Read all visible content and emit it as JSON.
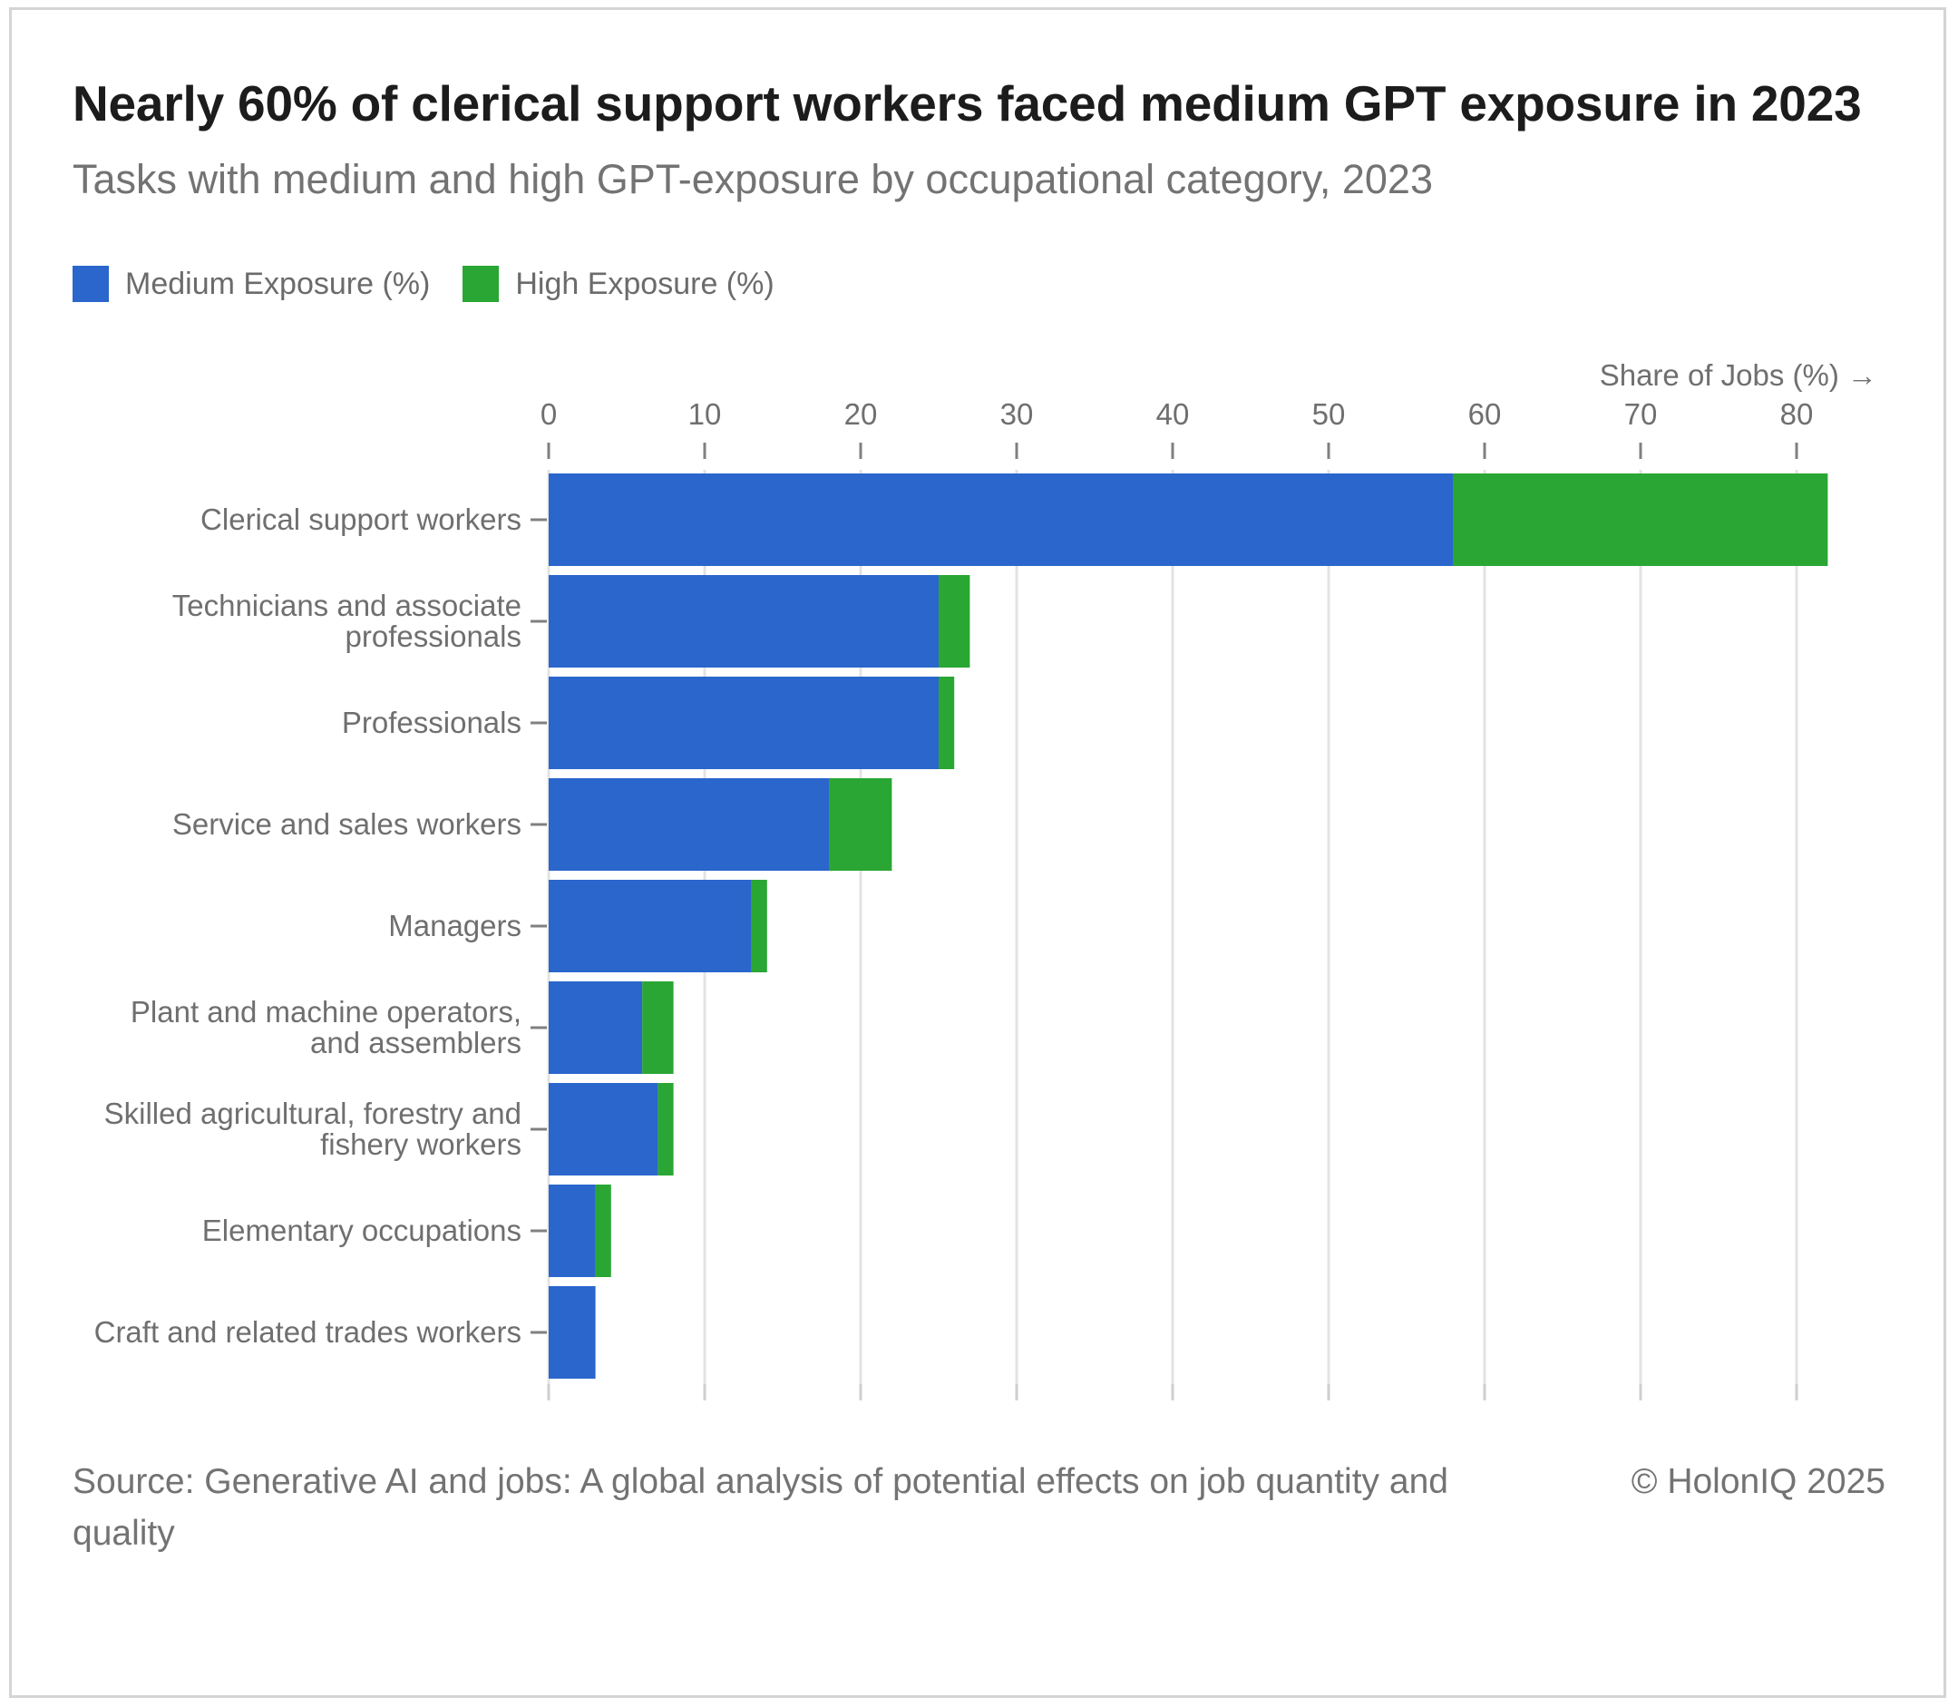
{
  "title": "Nearly 60% of clerical support workers faced medium GPT exposure in 2023",
  "subtitle": "Tasks with medium and high GPT-exposure by occupational category, 2023",
  "source": "Source: Generative AI and jobs: A global analysis of potential effects on job quantity and quality",
  "copyright": "© HolonIQ 2025",
  "colors": {
    "medium": "#2a66cc",
    "high": "#2aa634",
    "grid": "#e3e3e3",
    "axis_text": "#6f6f6f"
  },
  "chart_data": {
    "type": "bar",
    "orientation": "horizontal",
    "stacked": true,
    "xlabel": "Share of Jobs (%) →",
    "xlim": [
      0,
      82
    ],
    "xticks": [
      0,
      10,
      20,
      30,
      40,
      50,
      60,
      70,
      80
    ],
    "x_axis_position": "top",
    "grid": true,
    "legend_position": "top-left",
    "categories": [
      [
        "Clerical support workers"
      ],
      [
        "Technicians and associate",
        "professionals"
      ],
      [
        "Professionals"
      ],
      [
        "Service and sales workers"
      ],
      [
        "Managers"
      ],
      [
        "Plant and machine operators,",
        "and assemblers"
      ],
      [
        "Skilled agricultural, forestry and",
        "fishery workers"
      ],
      [
        "Elementary occupations"
      ],
      [
        "Craft and related trades workers"
      ]
    ],
    "series": [
      {
        "name": "Medium Exposure (%)",
        "values": [
          58,
          25,
          25,
          18,
          13,
          6,
          7,
          3,
          3
        ]
      },
      {
        "name": "High Exposure (%)",
        "values": [
          24,
          2,
          1,
          4,
          1,
          2,
          1,
          1,
          0
        ]
      }
    ]
  }
}
